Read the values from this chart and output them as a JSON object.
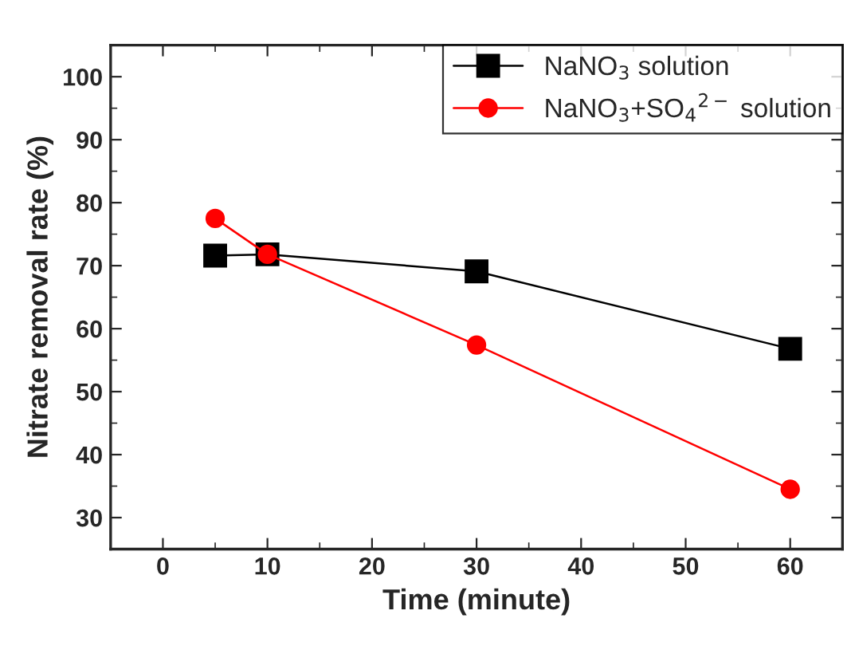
{
  "chart_data": {
    "type": "line",
    "xlabel": "Time (minute)",
    "ylabel": "Nitrate removal rate (%)",
    "x": [
      5,
      10,
      30,
      60
    ],
    "series": [
      {
        "name": "NaNO$_{3}$ solution",
        "color": "#000000",
        "values": [
          71.6,
          71.8,
          69.1,
          56.8
        ],
        "marker": "square"
      },
      {
        "name": "NaNO$_{3}$+SO$_{4}$$^{2−}$ solution",
        "color": "#ff0000",
        "values": [
          77.5,
          71.8,
          57.4,
          34.5
        ],
        "marker": "circle"
      }
    ],
    "xlim": [
      -5,
      65
    ],
    "xticks": [
      0,
      10,
      20,
      30,
      40,
      50,
      60
    ],
    "ylim": [
      25,
      105
    ],
    "yticks": [
      30,
      40,
      50,
      60,
      70,
      80,
      90,
      100
    ],
    "grid": false,
    "legend": "top right",
    "line_style": "solid"
  }
}
